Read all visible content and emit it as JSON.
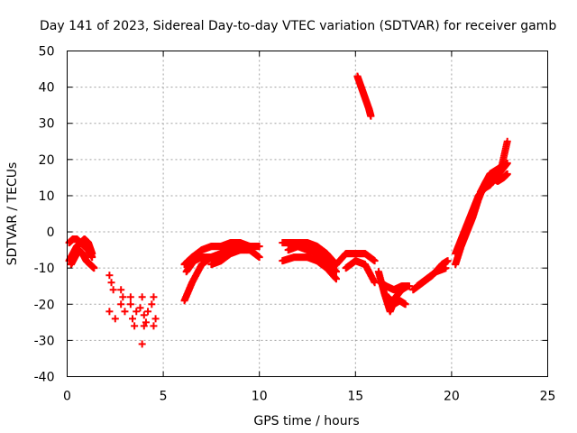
{
  "chart_data": {
    "type": "scatter",
    "title": "Day 141 of 2023, Sidereal Day-to-day VTEC variation (SDTVAR) for receiver gamb",
    "xlabel": "GPS time / hours",
    "ylabel": "SDTVAR / TECUs",
    "xlim": [
      0,
      25
    ],
    "ylim": [
      -40,
      50
    ],
    "xticks": [
      0,
      5,
      10,
      15,
      20,
      25
    ],
    "yticks": [
      -40,
      -30,
      -20,
      -10,
      0,
      10,
      20,
      30,
      40,
      50
    ],
    "grid": true,
    "marker": "+",
    "color": "#ff0000",
    "series": [
      {
        "name": "tracks",
        "segments": [
          {
            "x": [
              0.1,
              0.3,
              0.5,
              0.7,
              0.9,
              1.1,
              1.3
            ],
            "y": [
              -3,
              -2,
              -2,
              -3,
              -2,
              -3,
              -6
            ]
          },
          {
            "x": [
              0.1,
              0.3,
              0.5,
              0.7,
              0.9,
              1.1,
              1.3
            ],
            "y": [
              -8,
              -6,
              -4,
              -3,
              -4,
              -5,
              -7
            ]
          },
          {
            "x": [
              0.2,
              0.4,
              0.6,
              0.8,
              1.0,
              1.2,
              1.4
            ],
            "y": [
              -9,
              -7,
              -5,
              -6,
              -8,
              -9,
              -10
            ]
          },
          {
            "x": [
              6.1,
              6.5,
              7.0,
              7.5,
              8.0,
              8.5,
              9.0,
              9.5
            ],
            "y": [
              -19,
              -14,
              -9,
              -7,
              -6,
              -5,
              -4,
              -4
            ]
          },
          {
            "x": [
              6.1,
              6.5,
              7.0,
              7.5,
              8.0,
              8.5,
              9.0
            ],
            "y": [
              -9,
              -7,
              -5,
              -4,
              -4,
              -3,
              -3
            ]
          },
          {
            "x": [
              6.2,
              6.6,
              7.0,
              7.5,
              8.0,
              8.5,
              9.0,
              9.5,
              10.0
            ],
            "y": [
              -11,
              -8,
              -7,
              -7,
              -6,
              -4,
              -3,
              -4,
              -4
            ]
          },
          {
            "x": [
              7.5,
              8.0,
              8.5,
              9.0,
              9.5,
              10.0
            ],
            "y": [
              -9,
              -8,
              -6,
              -5,
              -5,
              -7
            ]
          },
          {
            "x": [
              11.2,
              11.8,
              12.5,
              13.0,
              13.5,
              14.0
            ],
            "y": [
              -3,
              -3,
              -3,
              -4,
              -6,
              -9
            ]
          },
          {
            "x": [
              11.2,
              11.8,
              12.5,
              13.0,
              13.5,
              14.0
            ],
            "y": [
              -8,
              -7,
              -7,
              -8,
              -10,
              -13
            ]
          },
          {
            "x": [
              11.5,
              12.0,
              12.5,
              13.0,
              13.5,
              14.0
            ],
            "y": [
              -5,
              -4,
              -5,
              -6,
              -8,
              -11
            ]
          },
          {
            "x": [
              14.0,
              14.5,
              15.0,
              15.5,
              16.0
            ],
            "y": [
              -9,
              -6,
              -6,
              -6,
              -8
            ]
          },
          {
            "x": [
              14.5,
              15.0,
              15.5,
              16.0
            ],
            "y": [
              -10,
              -8,
              -9,
              -14
            ]
          },
          {
            "x": [
              15.1,
              15.3,
              15.5,
              15.7,
              15.8
            ],
            "y": [
              43,
              40,
              37,
              34,
              32
            ]
          },
          {
            "x": [
              16.2,
              16.5,
              16.8,
              17.1,
              17.4,
              17.7
            ],
            "y": [
              -11,
              -17,
              -22,
              -18,
              -16,
              -15
            ]
          },
          {
            "x": [
              16.3,
              16.6,
              17.0,
              17.4,
              17.8
            ],
            "y": [
              -14,
              -15,
              -16,
              -15,
              -15
            ]
          },
          {
            "x": [
              16.7,
              17.0,
              17.3,
              17.6
            ],
            "y": [
              -18,
              -20,
              -19,
              -20
            ]
          },
          {
            "x": [
              18.0,
              18.5,
              19.0,
              19.5,
              19.8
            ],
            "y": [
              -16,
              -14,
              -12,
              -9,
              -8
            ]
          },
          {
            "x": [
              18.2,
              18.7,
              19.2,
              19.7
            ],
            "y": [
              -15,
              -13,
              -11,
              -10
            ]
          },
          {
            "x": [
              20.2,
              20.5,
              20.8,
              21.1,
              21.4,
              21.7,
              22.0,
              22.3,
              22.6,
              22.9
            ],
            "y": [
              -9,
              -4,
              0,
              4,
              9,
              13,
              16,
              17,
              18,
              25
            ]
          },
          {
            "x": [
              20.2,
              20.5,
              20.8,
              21.1,
              21.4,
              21.7,
              22.0,
              22.3,
              22.6,
              22.9
            ],
            "y": [
              -6,
              -2,
              2,
              6,
              10,
              12,
              13,
              15,
              17,
              19
            ]
          },
          {
            "x": [
              21.5,
              21.8,
              22.1,
              22.4,
              22.7,
              22.9
            ],
            "y": [
              11,
              14,
              15,
              14,
              15,
              16
            ]
          }
        ]
      },
      {
        "name": "isolated",
        "x": [
          2.2,
          2.3,
          2.4,
          2.2,
          2.5,
          2.8,
          2.9,
          3.0,
          2.8,
          3.3,
          3.4,
          3.5,
          3.3,
          3.6,
          3.9,
          4.0,
          4.1,
          3.8,
          4.0,
          4.2,
          4.5,
          4.6,
          4.4,
          4.5,
          3.9
        ],
        "y": [
          -12,
          -14,
          -16,
          -22,
          -24,
          -16,
          -18,
          -22,
          -20,
          -20,
          -24,
          -26,
          -18,
          -22,
          -18,
          -23,
          -25,
          -21,
          -26,
          -22,
          -18,
          -24,
          -20,
          -26,
          -31
        ]
      }
    ]
  }
}
